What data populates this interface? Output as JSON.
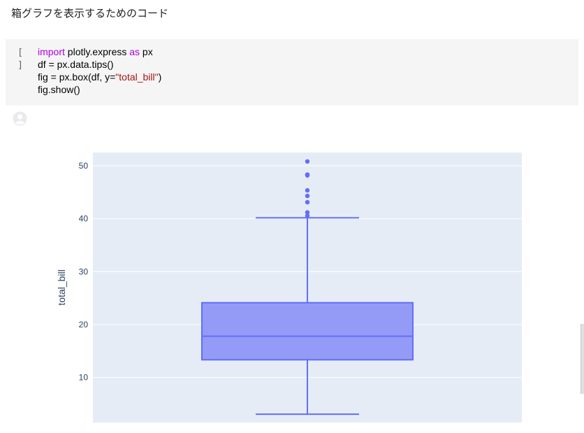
{
  "notebook": {
    "markdown_text": "箱グラフを表示するためのコード",
    "run_button_label": "[ ]",
    "code": {
      "line1": {
        "kw1": "import",
        "mid": " plotly.express ",
        "kw2": "as",
        "end": " px"
      },
      "line2": "df = px.data.tips()",
      "line3": {
        "pre": "fig = px.box(df, y=",
        "str": "\"total_bill\"",
        "post": ")"
      },
      "line4": "fig.show()"
    },
    "output_icon": "user-avatar-icon"
  },
  "chart_data": {
    "type": "box",
    "ylabel": "total_bill",
    "ylim": [
      1.5,
      52.5
    ],
    "yticks": [
      10,
      20,
      30,
      40,
      50
    ],
    "grid": true,
    "box": {
      "min": 3.07,
      "q1": 13.35,
      "median": 17.8,
      "q3": 24.13,
      "upper_fence": 40.17
    },
    "outliers": [
      40.55,
      41.19,
      43.11,
      44.3,
      45.35,
      48.17,
      48.27,
      48.33,
      50.81
    ],
    "colors": {
      "plot_bg": "#e5ecf6",
      "box_fill": "#939bf6",
      "box_line": "#636efa",
      "grid": "#ffffff",
      "tick_text": "#2a3f5f"
    }
  }
}
